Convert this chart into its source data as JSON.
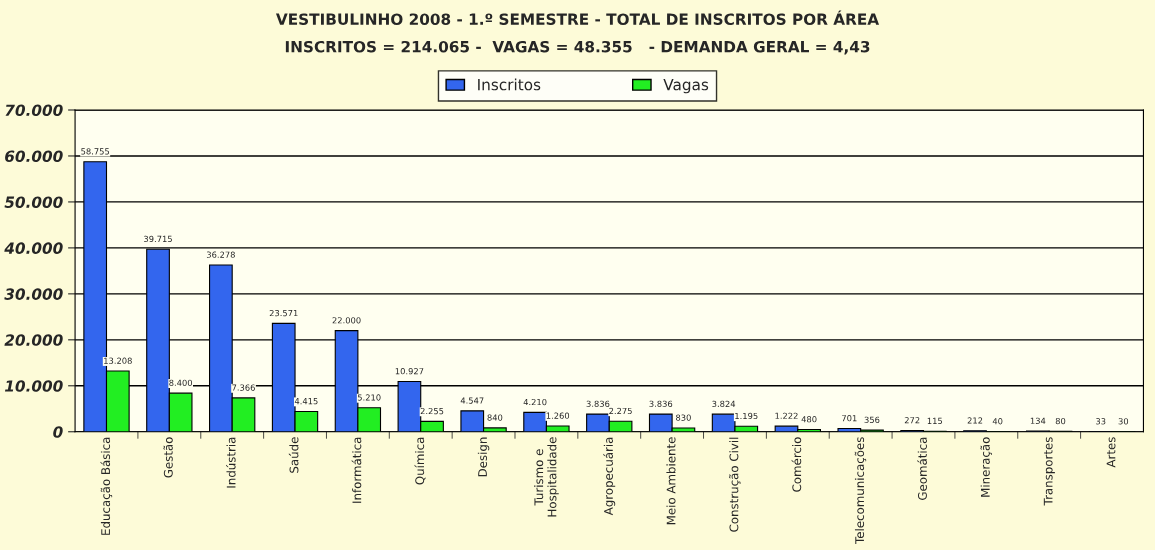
{
  "chart_data": {
    "type": "bar",
    "title": "VESTIBULINHO 2008 - 1.º SEMESTRE - TOTAL DE INSCRITOS POR ÁREA",
    "subtitle": "INSCRITOS = 214.065 -  VAGAS = 48.355   - DEMANDA GERAL = 4,43",
    "categories": [
      "Educação Básica",
      "Gestão",
      "Indústria",
      "Saúde",
      "Informática",
      "Química",
      "Design",
      "Turismo e\nHospitalidade",
      "Agropecuária",
      "Meio Ambiente",
      "Construção Civil",
      "Comércio",
      "Telecomunicações",
      "Geomática",
      "Mineração",
      "Transportes",
      "Artes"
    ],
    "series": [
      {
        "name": "Inscritos",
        "color": "#3366ee",
        "values": [
          58755,
          39715,
          36278,
          23571,
          22000,
          10927,
          4547,
          4210,
          3836,
          3836,
          3824,
          1222,
          701,
          272,
          212,
          134,
          33
        ],
        "value_labels": [
          "58.755",
          "39.715",
          "36.278",
          "23.571",
          "22.000",
          "10.927",
          "4.547",
          "4.210",
          "3.836",
          "3.836",
          "3.824",
          "1.222",
          "701",
          "272",
          "212",
          "134",
          "33"
        ]
      },
      {
        "name": "Vagas",
        "color": "#22ee22",
        "values": [
          13208,
          8400,
          7366,
          4415,
          5210,
          2255,
          840,
          1260,
          2275,
          830,
          1195,
          480,
          356,
          115,
          40,
          80,
          30
        ],
        "value_labels": [
          "13.208",
          "8.400",
          "7.366",
          "4.415",
          "5.210",
          "2.255",
          "840",
          "1.260",
          "2.275",
          "830",
          "1.195",
          "480",
          "356",
          "115",
          "40",
          "80",
          "30"
        ]
      }
    ],
    "ylim": [
      0,
      70000
    ],
    "yticks": [
      {
        "value": 0,
        "label": "0"
      },
      {
        "value": 10000,
        "label": "10.000"
      },
      {
        "value": 20000,
        "label": "20.000"
      },
      {
        "value": 30000,
        "label": "30.000"
      },
      {
        "value": 40000,
        "label": "40.000"
      },
      {
        "value": 50000,
        "label": "50.000"
      },
      {
        "value": 60000,
        "label": "60.000"
      },
      {
        "value": 70000,
        "label": "70.000"
      }
    ],
    "grid": "y",
    "legend": "top"
  }
}
